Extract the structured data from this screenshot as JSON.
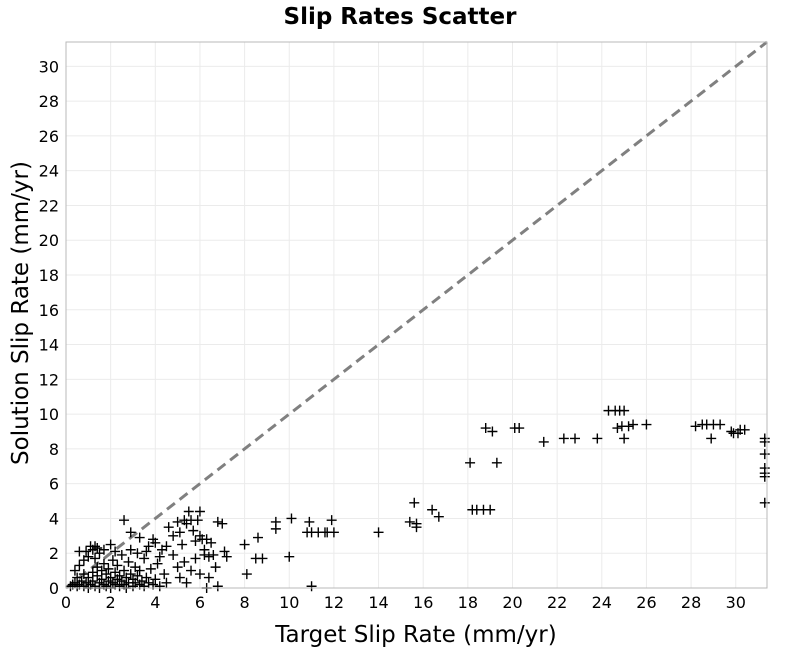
{
  "chart_data": {
    "type": "scatter",
    "title": "Slip Rates Scatter",
    "xlabel": "Target Slip Rate (mm/yr)",
    "ylabel": "Solution Slip Rate (mm/yr)",
    "xlim": [
      0,
      31.4
    ],
    "ylim": [
      0,
      31.4
    ],
    "xticks": [
      0,
      2,
      4,
      6,
      8,
      10,
      12,
      14,
      16,
      18,
      20,
      22,
      24,
      26,
      28,
      30
    ],
    "yticks": [
      0,
      2,
      4,
      6,
      8,
      10,
      12,
      14,
      16,
      18,
      20,
      22,
      24,
      26,
      28,
      30
    ],
    "grid": true,
    "marker": "plus",
    "marker_color": "#000000",
    "reference_line": {
      "style": "dashed",
      "color": "#808080",
      "from": [
        0,
        0
      ],
      "to": [
        31.4,
        31.4
      ]
    },
    "points": [
      [
        0.2,
        0.1
      ],
      [
        0.3,
        0.2
      ],
      [
        0.4,
        0.3
      ],
      [
        0.5,
        0.1
      ],
      [
        0.5,
        0.6
      ],
      [
        0.6,
        0.2
      ],
      [
        0.7,
        0.4
      ],
      [
        0.8,
        0.1
      ],
      [
        0.8,
        0.8
      ],
      [
        0.9,
        0.3
      ],
      [
        1.0,
        0.6
      ],
      [
        1.0,
        0.0
      ],
      [
        1.1,
        0.2
      ],
      [
        1.2,
        0.9
      ],
      [
        1.2,
        0.4
      ],
      [
        1.3,
        0.1
      ],
      [
        1.4,
        0.7
      ],
      [
        1.4,
        1.2
      ],
      [
        1.5,
        0.3
      ],
      [
        1.5,
        0.0
      ],
      [
        1.6,
        0.5
      ],
      [
        1.6,
        1.0
      ],
      [
        1.7,
        0.2
      ],
      [
        1.7,
        1.4
      ],
      [
        1.8,
        0.8
      ],
      [
        1.8,
        0.1
      ],
      [
        1.9,
        0.4
      ],
      [
        1.9,
        1.1
      ],
      [
        2.0,
        0.6
      ],
      [
        2.0,
        0.0
      ],
      [
        2.1,
        0.3
      ],
      [
        2.1,
        1.6
      ],
      [
        2.2,
        0.9
      ],
      [
        2.2,
        0.2
      ],
      [
        2.3,
        0.5
      ],
      [
        2.3,
        1.3
      ],
      [
        2.4,
        0.1
      ],
      [
        2.4,
        0.7
      ],
      [
        2.5,
        1.9
      ],
      [
        2.5,
        0.4
      ],
      [
        2.6,
        0.2
      ],
      [
        2.6,
        1.0
      ],
      [
        2.7,
        0.6
      ],
      [
        2.7,
        0.0
      ],
      [
        2.8,
        1.5
      ],
      [
        2.8,
        0.3
      ],
      [
        2.9,
        0.8
      ],
      [
        2.9,
        2.2
      ],
      [
        3.0,
        0.1
      ],
      [
        3.0,
        0.5
      ],
      [
        3.1,
        1.2
      ],
      [
        3.1,
        0.3
      ],
      [
        3.2,
        0.7
      ],
      [
        3.2,
        2.0
      ],
      [
        3.3,
        0.2
      ],
      [
        3.3,
        1.0
      ],
      [
        3.4,
        0.4
      ],
      [
        3.5,
        1.7
      ],
      [
        3.5,
        0.1
      ],
      [
        3.6,
        0.6
      ],
      [
        3.7,
        2.4
      ],
      [
        3.7,
        0.3
      ],
      [
        3.8,
        1.1
      ],
      [
        3.9,
        0.2
      ],
      [
        3.9,
        2.8
      ],
      [
        4.0,
        0.5
      ],
      [
        4.1,
        1.4
      ],
      [
        4.2,
        0.1
      ],
      [
        4.3,
        2.2
      ],
      [
        4.4,
        0.8
      ],
      [
        0.6,
        2.1
      ],
      [
        0.9,
        2.1
      ],
      [
        1.0,
        1.8
      ],
      [
        1.1,
        2.4
      ],
      [
        1.2,
        2.2
      ],
      [
        1.3,
        2.4
      ],
      [
        1.4,
        2.3
      ],
      [
        1.5,
        2.0
      ],
      [
        1.7,
        2.2
      ],
      [
        0.8,
        1.6
      ],
      [
        0.4,
        1.0
      ],
      [
        0.6,
        1.3
      ],
      [
        1.3,
        1.7
      ],
      [
        2.0,
        2.5
      ],
      [
        2.2,
        2.1
      ],
      [
        2.6,
        3.9
      ],
      [
        2.9,
        3.2
      ],
      [
        3.3,
        2.9
      ],
      [
        3.6,
        2.1
      ],
      [
        4.0,
        2.6
      ],
      [
        4.2,
        1.8
      ],
      [
        4.5,
        2.4
      ],
      [
        4.6,
        3.5
      ],
      [
        4.8,
        3.0
      ],
      [
        5.0,
        3.8
      ],
      [
        5.1,
        3.2
      ],
      [
        5.2,
        2.5
      ],
      [
        5.3,
        3.9
      ],
      [
        5.4,
        3.7
      ],
      [
        5.5,
        4.4
      ],
      [
        5.6,
        3.9
      ],
      [
        5.7,
        3.3
      ],
      [
        5.8,
        2.7
      ],
      [
        5.9,
        3.9
      ],
      [
        6.0,
        4.4
      ],
      [
        6.0,
        3.0
      ],
      [
        6.1,
        2.8
      ],
      [
        6.2,
        2.2
      ],
      [
        6.3,
        2.8
      ],
      [
        6.4,
        1.8
      ],
      [
        5.0,
        1.2
      ],
      [
        5.1,
        0.6
      ],
      [
        5.3,
        1.5
      ],
      [
        5.4,
        0.3
      ],
      [
        5.6,
        1.0
      ],
      [
        5.8,
        1.7
      ],
      [
        6.0,
        0.8
      ],
      [
        6.2,
        1.9
      ],
      [
        6.3,
        0.0
      ],
      [
        6.4,
        0.6
      ],
      [
        6.5,
        2.6
      ],
      [
        6.6,
        1.9
      ],
      [
        6.7,
        1.2
      ],
      [
        6.8,
        3.8
      ],
      [
        6.8,
        0.1
      ],
      [
        7.0,
        3.7
      ],
      [
        7.1,
        2.1
      ],
      [
        7.2,
        1.8
      ],
      [
        4.8,
        1.9
      ],
      [
        4.5,
        0.3
      ],
      [
        8.0,
        2.5
      ],
      [
        8.1,
        0.8
      ],
      [
        8.5,
        1.7
      ],
      [
        8.6,
        2.9
      ],
      [
        8.8,
        1.7
      ],
      [
        9.4,
        3.8
      ],
      [
        9.4,
        3.4
      ],
      [
        10.0,
        1.8
      ],
      [
        10.1,
        4.0
      ],
      [
        10.8,
        3.2
      ],
      [
        10.9,
        3.8
      ],
      [
        11.0,
        3.2
      ],
      [
        11.0,
        0.1
      ],
      [
        11.3,
        3.2
      ],
      [
        11.6,
        3.2
      ],
      [
        11.7,
        3.2
      ],
      [
        11.9,
        3.9
      ],
      [
        12.0,
        3.2
      ],
      [
        14.0,
        3.2
      ],
      [
        15.4,
        3.8
      ],
      [
        15.6,
        4.9
      ],
      [
        15.7,
        3.5
      ],
      [
        15.7,
        3.7
      ],
      [
        16.4,
        4.5
      ],
      [
        16.7,
        4.1
      ],
      [
        18.1,
        7.2
      ],
      [
        18.2,
        4.5
      ],
      [
        18.4,
        4.5
      ],
      [
        18.7,
        4.5
      ],
      [
        18.8,
        9.2
      ],
      [
        19.0,
        4.5
      ],
      [
        19.1,
        9.0
      ],
      [
        19.3,
        7.2
      ],
      [
        20.1,
        9.2
      ],
      [
        20.3,
        9.2
      ],
      [
        21.4,
        8.4
      ],
      [
        22.3,
        8.6
      ],
      [
        22.8,
        8.6
      ],
      [
        23.8,
        8.6
      ],
      [
        24.3,
        10.2
      ],
      [
        24.6,
        10.2
      ],
      [
        24.7,
        9.2
      ],
      [
        24.8,
        10.2
      ],
      [
        24.9,
        9.3
      ],
      [
        25.0,
        10.2
      ],
      [
        25.0,
        8.6
      ],
      [
        25.2,
        9.3
      ],
      [
        25.4,
        9.4
      ],
      [
        26.0,
        9.4
      ],
      [
        28.2,
        9.3
      ],
      [
        28.5,
        9.4
      ],
      [
        28.7,
        9.4
      ],
      [
        28.9,
        8.6
      ],
      [
        29.0,
        9.4
      ],
      [
        29.3,
        9.4
      ],
      [
        29.8,
        9.0
      ],
      [
        29.9,
        8.9
      ],
      [
        30.1,
        8.9
      ],
      [
        30.2,
        9.1
      ],
      [
        30.4,
        9.1
      ],
      [
        31.3,
        8.6
      ],
      [
        31.3,
        8.4
      ],
      [
        31.3,
        7.7
      ],
      [
        31.3,
        6.9
      ],
      [
        31.3,
        6.6
      ],
      [
        31.3,
        6.4
      ],
      [
        31.3,
        4.9
      ]
    ]
  }
}
